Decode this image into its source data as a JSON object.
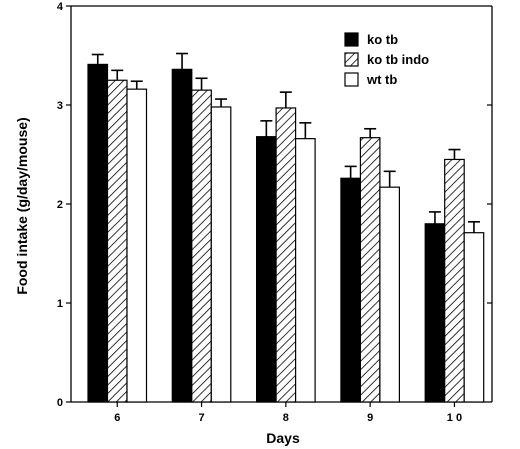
{
  "chart_data": {
    "type": "bar",
    "categories": [
      "6",
      "7",
      "8",
      "9",
      "1 0"
    ],
    "series": [
      {
        "name": "ko tb",
        "values": [
          3.41,
          3.36,
          2.68,
          2.26,
          1.8
        ],
        "errors": [
          0.1,
          0.16,
          0.16,
          0.12,
          0.12
        ],
        "fill": "solid"
      },
      {
        "name": "ko tb indo",
        "values": [
          3.25,
          3.15,
          2.97,
          2.67,
          2.45
        ],
        "errors": [
          0.1,
          0.12,
          0.16,
          0.09,
          0.1
        ],
        "fill": "hatched"
      },
      {
        "name": "wt tb",
        "values": [
          3.16,
          2.98,
          2.66,
          2.17,
          1.71
        ],
        "errors": [
          0.08,
          0.08,
          0.16,
          0.16,
          0.11
        ],
        "fill": "open"
      }
    ],
    "xlabel": "Days",
    "ylabel": "Food   intake   (g/day/mouse)",
    "ylim": [
      0,
      4
    ],
    "yticks": [
      "0",
      "1",
      "2",
      "3",
      "4"
    ],
    "grid": false,
    "legend_position": "top-right",
    "colors": {
      "bar_solid": "#000000",
      "bar_open": "#ffffff",
      "stroke": "#000000"
    }
  }
}
